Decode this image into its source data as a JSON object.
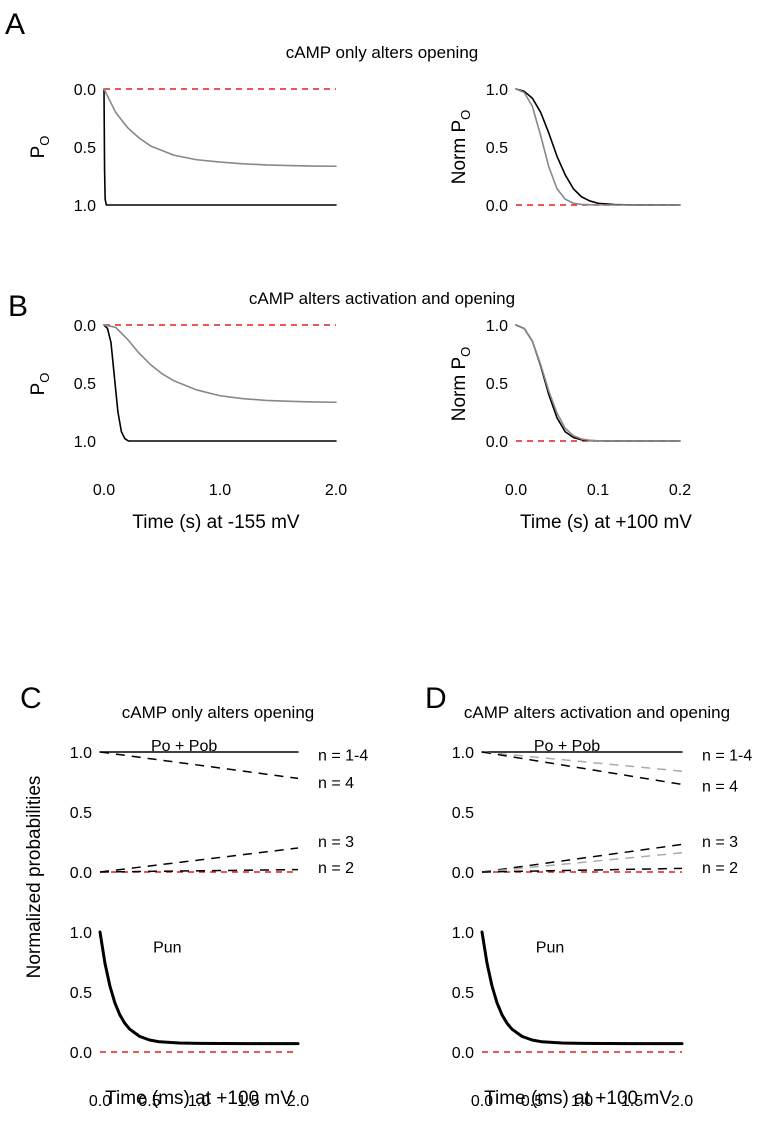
{
  "panel_letters": [
    "A",
    "B",
    "C",
    "D"
  ],
  "chart_data": [
    {
      "id": "A_left",
      "type": "line",
      "panel": "A",
      "title": "cAMP only alters opening",
      "ylabel": "Po",
      "ylabel_main": "P",
      "ylabel_sub": "O",
      "xlabel": "",
      "xlim": [
        0,
        2.0
      ],
      "ylim": [
        0,
        1.0
      ],
      "y_inverted": true,
      "yticks": [
        "0.0",
        "0.5",
        "1.0"
      ],
      "xticks": [],
      "series": [
        {
          "color": "#000000",
          "style": "solid",
          "x": [
            0,
            0.005,
            0.01,
            0.02,
            0.05,
            1.0,
            2.0
          ],
          "y": [
            0,
            0.7,
            0.95,
            1.0,
            1.0,
            1.0,
            1.0
          ]
        },
        {
          "color": "#888888",
          "style": "solid",
          "x": [
            0,
            0.1,
            0.2,
            0.3,
            0.4,
            0.6,
            0.8,
            1.0,
            1.2,
            1.4,
            1.6,
            1.8,
            2.0
          ],
          "y": [
            0,
            0.2,
            0.33,
            0.42,
            0.49,
            0.57,
            0.61,
            0.63,
            0.645,
            0.655,
            0.66,
            0.664,
            0.666
          ]
        }
      ],
      "reference_line": {
        "y": 0,
        "color": "#e02020"
      }
    },
    {
      "id": "A_right",
      "type": "line",
      "panel": "A",
      "title": "",
      "ylabel": "Norm Po",
      "ylabel_main": "Norm P",
      "ylabel_sub": "O",
      "xlabel": "",
      "xlim": [
        0,
        0.2
      ],
      "ylim": [
        0,
        1.0
      ],
      "y_inverted": false,
      "yticks": [
        "0.0",
        "0.5",
        "1.0"
      ],
      "xticks": [],
      "series": [
        {
          "color": "#000000",
          "style": "solid",
          "x": [
            0,
            0.01,
            0.02,
            0.03,
            0.04,
            0.05,
            0.06,
            0.07,
            0.08,
            0.09,
            0.1,
            0.12,
            0.14,
            0.2
          ],
          "y": [
            1.0,
            0.98,
            0.92,
            0.8,
            0.62,
            0.42,
            0.26,
            0.14,
            0.07,
            0.035,
            0.015,
            0.004,
            0.001,
            0
          ]
        },
        {
          "color": "#888888",
          "style": "solid",
          "x": [
            0,
            0.01,
            0.02,
            0.03,
            0.04,
            0.05,
            0.06,
            0.07,
            0.08,
            0.1,
            0.12,
            0.2
          ],
          "y": [
            1.0,
            0.97,
            0.85,
            0.6,
            0.33,
            0.14,
            0.05,
            0.015,
            0.005,
            0.001,
            0,
            0
          ]
        }
      ],
      "reference_line": {
        "y": 0,
        "color": "#e02020"
      }
    },
    {
      "id": "B_left",
      "type": "line",
      "panel": "B",
      "title": "cAMP alters activation and opening",
      "ylabel": "Po",
      "ylabel_main": "P",
      "ylabel_sub": "O",
      "xlabel": "Time (s) at -155 mV",
      "xlim": [
        0,
        2.0
      ],
      "ylim": [
        0,
        1.0
      ],
      "y_inverted": true,
      "yticks": [
        "0.0",
        "0.5",
        "1.0"
      ],
      "xticks": [
        "0.0",
        "1.0",
        "2.0"
      ],
      "series": [
        {
          "color": "#000000",
          "style": "solid",
          "x": [
            0,
            0.03,
            0.06,
            0.09,
            0.12,
            0.15,
            0.18,
            0.21,
            0.25,
            1.0,
            2.0
          ],
          "y": [
            0,
            0.03,
            0.15,
            0.45,
            0.75,
            0.92,
            0.98,
            1.0,
            1.0,
            1.0,
            1.0
          ]
        },
        {
          "color": "#888888",
          "style": "solid",
          "x": [
            0,
            0.1,
            0.2,
            0.3,
            0.4,
            0.5,
            0.6,
            0.8,
            1.0,
            1.2,
            1.4,
            1.6,
            1.8,
            2.0
          ],
          "y": [
            0,
            0.02,
            0.12,
            0.24,
            0.34,
            0.42,
            0.48,
            0.56,
            0.61,
            0.635,
            0.65,
            0.658,
            0.663,
            0.666
          ]
        }
      ],
      "reference_line": {
        "y": 0,
        "color": "#e02020"
      }
    },
    {
      "id": "B_right",
      "type": "line",
      "panel": "B",
      "title": "",
      "ylabel": "Norm Po",
      "ylabel_main": "Norm P",
      "ylabel_sub": "O",
      "xlabel": "Time (s) at +100 mV",
      "xlim": [
        0,
        0.2
      ],
      "ylim": [
        0,
        1.0
      ],
      "y_inverted": false,
      "yticks": [
        "0.0",
        "0.5",
        "1.0"
      ],
      "xticks": [
        "0.0",
        "0.1",
        "0.2"
      ],
      "series": [
        {
          "color": "#000000",
          "style": "solid",
          "x": [
            0,
            0.01,
            0.02,
            0.03,
            0.04,
            0.05,
            0.06,
            0.07,
            0.08,
            0.09,
            0.1,
            0.12,
            0.2
          ],
          "y": [
            1.0,
            0.97,
            0.86,
            0.65,
            0.4,
            0.2,
            0.08,
            0.03,
            0.01,
            0.004,
            0.001,
            0,
            0
          ]
        },
        {
          "color": "#888888",
          "style": "solid",
          "x": [
            0,
            0.01,
            0.02,
            0.03,
            0.04,
            0.05,
            0.06,
            0.07,
            0.08,
            0.09,
            0.1,
            0.12,
            0.2
          ],
          "y": [
            1.0,
            0.97,
            0.86,
            0.66,
            0.43,
            0.24,
            0.11,
            0.045,
            0.017,
            0.006,
            0.002,
            0,
            0
          ]
        }
      ],
      "reference_line": {
        "y": 0,
        "color": "#e02020"
      }
    },
    {
      "id": "C_top",
      "type": "line",
      "panel": "C",
      "title": "cAMP only alters opening",
      "ylabel": "",
      "xlabel": "",
      "xlim": [
        0,
        2.0
      ],
      "ylim": [
        0,
        1.0
      ],
      "y_inverted": false,
      "yticks": [
        "0.0",
        "0.5",
        "1.0"
      ],
      "xticks": [],
      "series": [
        {
          "color": "#000000",
          "style": "solid",
          "width": 1.5,
          "x": [
            0,
            2.0
          ],
          "y": [
            1.0,
            1.0
          ]
        },
        {
          "color": "#000000",
          "style": "dashed",
          "width": 1.5,
          "x": [
            0,
            2.0
          ],
          "y": [
            1.0,
            0.78
          ]
        },
        {
          "color": "#000000",
          "style": "dashed",
          "width": 1.5,
          "x": [
            0,
            2.0
          ],
          "y": [
            0,
            0.2
          ]
        },
        {
          "color": "#000000",
          "style": "dashed",
          "width": 1.5,
          "x": [
            0,
            2.0
          ],
          "y": [
            0,
            0.02
          ]
        }
      ],
      "reference_line": {
        "y": 0,
        "color": "#e02020"
      },
      "annotations": [
        {
          "text": "Po + Pob",
          "x": 0.85,
          "y": 1.06
        },
        {
          "text": "n = 1-4",
          "x": 2.22,
          "y": 0.98
        },
        {
          "text": "n = 4",
          "x": 2.22,
          "y": 0.75
        },
        {
          "text": "n = 3",
          "x": 2.22,
          "y": 0.26
        },
        {
          "text": "n = 2",
          "x": 2.22,
          "y": 0.04
        }
      ]
    },
    {
      "id": "C_bottom",
      "type": "line",
      "panel": "C",
      "title": "",
      "ylabel": "Normalized probabilities",
      "xlabel": "Time (ms) at +100 mV",
      "xlim": [
        0,
        2.0
      ],
      "ylim": [
        0,
        1.0
      ],
      "y_inverted": false,
      "yticks": [
        "0.0",
        "0.5",
        "1.0"
      ],
      "xticks": [
        "0.0",
        "0.5",
        "1.0",
        "1.5",
        "2.0"
      ],
      "series": [
        {
          "color": "#000000",
          "style": "solid",
          "width": 3,
          "x": [
            0,
            0.05,
            0.1,
            0.15,
            0.2,
            0.25,
            0.3,
            0.4,
            0.5,
            0.6,
            0.8,
            1.0,
            1.5,
            2.0
          ],
          "y": [
            1.0,
            0.74,
            0.55,
            0.41,
            0.31,
            0.24,
            0.19,
            0.13,
            0.1,
            0.085,
            0.075,
            0.072,
            0.07,
            0.07
          ]
        }
      ],
      "reference_line": {
        "y": 0,
        "color": "#e02020"
      },
      "annotations": [
        {
          "text": "Pun",
          "x": 0.68,
          "y": 0.88
        }
      ]
    },
    {
      "id": "D_top",
      "type": "line",
      "panel": "D",
      "title": "cAMP alters activation and opening",
      "ylabel": "",
      "xlabel": "",
      "xlim": [
        0,
        2.0
      ],
      "ylim": [
        0,
        1.0
      ],
      "y_inverted": false,
      "yticks": [
        "0.0",
        "0.5",
        "1.0"
      ],
      "xticks": [],
      "series": [
        {
          "color": "#000000",
          "style": "solid",
          "width": 1.5,
          "x": [
            0,
            2.0
          ],
          "y": [
            1.0,
            1.0
          ]
        },
        {
          "color": "#aaaaaa",
          "style": "dashed",
          "width": 1.5,
          "x": [
            0,
            2.0
          ],
          "y": [
            1.0,
            0.84
          ]
        },
        {
          "color": "#000000",
          "style": "dashed",
          "width": 1.5,
          "x": [
            0,
            2.0
          ],
          "y": [
            1.0,
            0.73
          ]
        },
        {
          "color": "#000000",
          "style": "dashed",
          "width": 1.5,
          "x": [
            0,
            2.0
          ],
          "y": [
            0,
            0.23
          ]
        },
        {
          "color": "#aaaaaa",
          "style": "dashed",
          "width": 1.5,
          "x": [
            0,
            2.0
          ],
          "y": [
            0,
            0.16
          ]
        },
        {
          "color": "#000000",
          "style": "dashed",
          "width": 1.5,
          "x": [
            0,
            2.0
          ],
          "y": [
            0,
            0.03
          ]
        }
      ],
      "reference_line": {
        "y": 0,
        "color": "#e02020"
      },
      "annotations": [
        {
          "text": "Po + Pob",
          "x": 0.85,
          "y": 1.06
        },
        {
          "text": "n = 1-4",
          "x": 2.22,
          "y": 0.98
        },
        {
          "text": "n = 4",
          "x": 2.22,
          "y": 0.72
        },
        {
          "text": "n = 3",
          "x": 2.22,
          "y": 0.26
        },
        {
          "text": "n = 2",
          "x": 2.22,
          "y": 0.04
        }
      ]
    },
    {
      "id": "D_bottom",
      "type": "line",
      "panel": "D",
      "title": "",
      "ylabel": "",
      "xlabel": "Time (ms) at +100 mV",
      "xlim": [
        0,
        2.0
      ],
      "ylim": [
        0,
        1.0
      ],
      "y_inverted": false,
      "yticks": [
        "0.0",
        "0.5",
        "1.0"
      ],
      "xticks": [
        "0.0",
        "0.5",
        "1.0",
        "1.5",
        "2.0"
      ],
      "series": [
        {
          "color": "#000000",
          "style": "solid",
          "width": 3,
          "x": [
            0,
            0.05,
            0.1,
            0.15,
            0.2,
            0.25,
            0.3,
            0.4,
            0.5,
            0.6,
            0.8,
            1.0,
            1.5,
            2.0
          ],
          "y": [
            1.0,
            0.74,
            0.55,
            0.41,
            0.31,
            0.24,
            0.19,
            0.13,
            0.1,
            0.085,
            0.075,
            0.072,
            0.07,
            0.07
          ]
        }
      ],
      "reference_line": {
        "y": 0,
        "color": "#e02020"
      },
      "annotations": [
        {
          "text": "Pun",
          "x": 0.68,
          "y": 0.88
        }
      ]
    }
  ]
}
